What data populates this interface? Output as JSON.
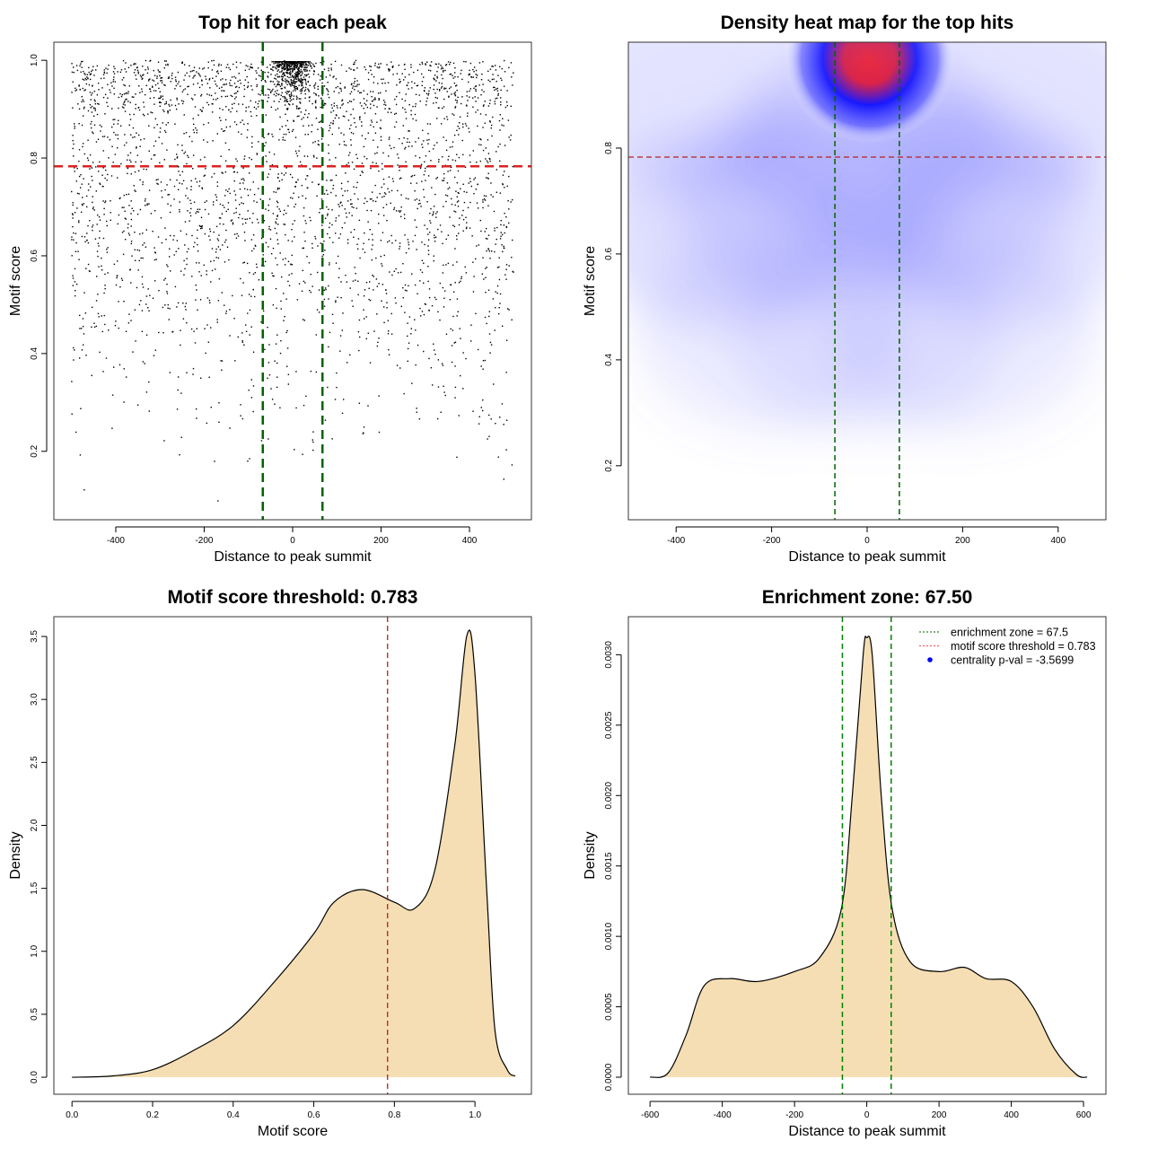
{
  "chart_data": [
    {
      "type": "scatter",
      "title": "Top hit for each peak",
      "xlabel": "Distance to peak summit",
      "ylabel": "Motif score",
      "xlim": [
        -540,
        540
      ],
      "ylim": [
        0.06,
        1.037
      ],
      "xticks": [
        -400,
        -200,
        0,
        200,
        400
      ],
      "yticks": [
        0.2,
        0.4,
        0.6,
        0.8,
        1.0
      ],
      "ytick_labels": [
        "0.2",
        "0.4",
        "0.6",
        "0.8",
        "1.0"
      ],
      "point_count_approx": 3500,
      "point_color": "#000000",
      "vlines": [
        -67.5,
        67.5
      ],
      "vline_color": "#006400",
      "hline": 0.783,
      "hline_color": "#dd2222",
      "grid": false
    },
    {
      "type": "heatmap",
      "title": "Density heat map for the top hits",
      "xlabel": "Distance to peak summit",
      "ylabel": "Motif score",
      "xlim": [
        -500,
        500
      ],
      "ylim": [
        0.098,
        1.0
      ],
      "xticks": [
        -400,
        -200,
        0,
        200,
        400
      ],
      "yticks": [
        0.2,
        0.4,
        0.6,
        0.8
      ],
      "ytick_labels": [
        "0.2",
        "0.4",
        "0.6",
        "0.8"
      ],
      "peak": {
        "x": 5,
        "y": 0.97
      },
      "colors": {
        "low": "#ffffff",
        "mid": "#0000ff",
        "high": "#ff0000"
      },
      "vlines": [
        -67.5,
        67.5
      ],
      "vline_color": "#006400",
      "hline": 0.783,
      "hline_color": "#b22222",
      "grid": false
    },
    {
      "type": "area",
      "title": "Motif score threshold: 0.783",
      "xlabel": "Motif score",
      "ylabel": "Density",
      "xlim": [
        -0.045,
        1.14
      ],
      "ylim": [
        -0.135,
        3.657
      ],
      "xticks": [
        0.0,
        0.2,
        0.4,
        0.6,
        0.8,
        1.0
      ],
      "xtick_labels": [
        "0.0",
        "0.2",
        "0.4",
        "0.6",
        "0.8",
        "1.0"
      ],
      "yticks": [
        0.0,
        0.5,
        1.0,
        1.5,
        2.0,
        2.5,
        3.0,
        3.5
      ],
      "ytick_labels": [
        "0.0",
        "0.5",
        "1.0",
        "1.5",
        "2.0",
        "2.5",
        "3.0",
        "3.5"
      ],
      "x": [
        0,
        0.1,
        0.2,
        0.3,
        0.4,
        0.5,
        0.6,
        0.65,
        0.72,
        0.8,
        0.85,
        0.9,
        0.95,
        0.98,
        1.0,
        1.03,
        1.05,
        1.08,
        1.1
      ],
      "y": [
        0,
        0.01,
        0.06,
        0.21,
        0.41,
        0.75,
        1.14,
        1.39,
        1.49,
        1.39,
        1.34,
        1.64,
        2.64,
        3.51,
        3.2,
        1.43,
        0.36,
        0.06,
        0.01
      ],
      "fill": "#f5deb3",
      "vline": 0.783,
      "vline_color": "#b22222",
      "grid": false
    },
    {
      "type": "area",
      "title": "Enrichment zone: 67.50",
      "xlabel": "Distance to peak summit",
      "ylabel": "Density",
      "xlim": [
        -660,
        662
      ],
      "ylim": [
        -0.000121,
        0.00327
      ],
      "xticks": [
        -600,
        -400,
        -200,
        0,
        200,
        400,
        600
      ],
      "xtick_labels": [
        "-600",
        "-400",
        "-200",
        "0",
        "200",
        "400",
        "600"
      ],
      "yticks": [
        0,
        0.0005,
        0.001,
        0.0015,
        0.002,
        0.0025,
        0.003
      ],
      "ytick_labels": [
        "0.0000",
        "0.0005",
        "0.0010",
        "0.0015",
        "0.0020",
        "0.0025",
        "0.0030"
      ],
      "x": [
        -600,
        -550,
        -500,
        -450,
        -380,
        -300,
        -200,
        -130,
        -70,
        -40,
        -10,
        0,
        15,
        40,
        70,
        120,
        200,
        270,
        330,
        400,
        460,
        520,
        580,
        610
      ],
      "y": [
        0,
        3e-05,
        0.0003,
        0.00065,
        0.0007,
        0.00068,
        0.00075,
        0.00085,
        0.0012,
        0.002,
        0.003,
        0.00312,
        0.003,
        0.002,
        0.0012,
        0.00082,
        0.00075,
        0.00078,
        0.0007,
        0.00068,
        0.0005,
        0.0002,
        2e-05,
        0
      ],
      "fill": "#f5deb3",
      "vlines": [
        -67.5,
        67.5
      ],
      "vline_color": "#008000",
      "legend": {
        "placement": "top-right",
        "entries": [
          {
            "label": "enrichment zone = 67.5",
            "color": "#006400",
            "style": "dotted-line"
          },
          {
            "label": "motif score threshold = 0.783",
            "color": "#ff4444",
            "style": "dotted-line"
          },
          {
            "label": "centrality p-val = -3.5699",
            "color": "#0000ff",
            "style": "point"
          }
        ]
      },
      "grid": false
    }
  ]
}
